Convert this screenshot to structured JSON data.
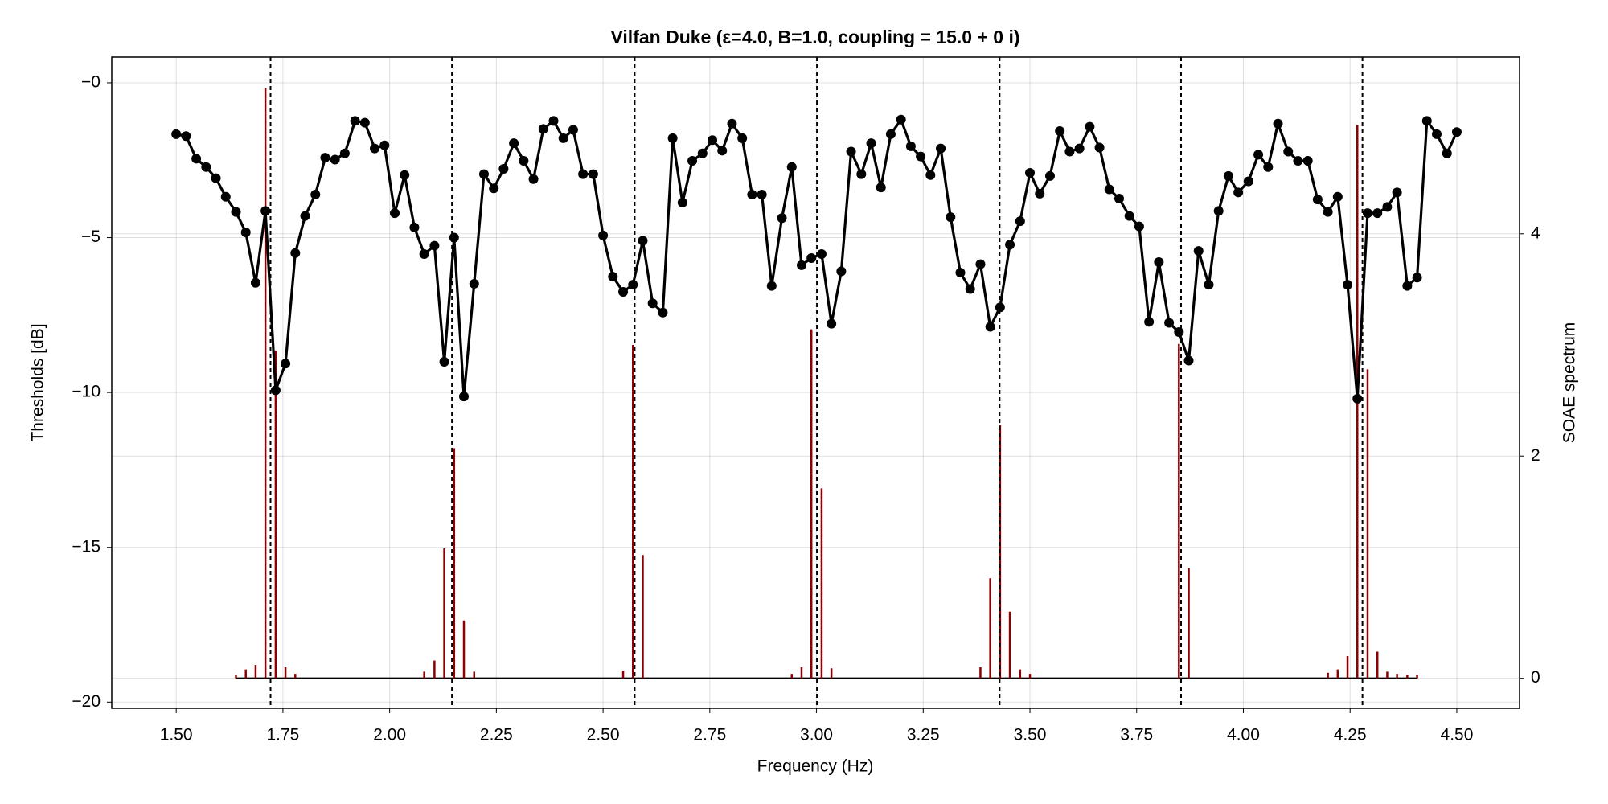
{
  "chart_data": {
    "type": "line",
    "title": "Vilfan Duke (ε=4.0, B=1.0, coupling = 15.0 + 0 i)",
    "x_label": "Frequency (Hz)",
    "y_label": "Thresholds [dB]",
    "y2_label": "SOAE spectrum",
    "grid": true,
    "xlim": [
      1.349,
      4.647
    ],
    "xticks": [
      {
        "value": 1.5,
        "label": "1.50"
      },
      {
        "value": 1.75,
        "label": "1.75"
      },
      {
        "value": 2.0,
        "label": "2.00"
      },
      {
        "value": 2.25,
        "label": "2.25"
      },
      {
        "value": 2.5,
        "label": "2.50"
      },
      {
        "value": 2.75,
        "label": "2.75"
      },
      {
        "value": 3.0,
        "label": "3.00"
      },
      {
        "value": 3.25,
        "label": "3.25"
      },
      {
        "value": 3.5,
        "label": "3.50"
      },
      {
        "value": 3.75,
        "label": "3.75"
      },
      {
        "value": 4.0,
        "label": "4.00"
      },
      {
        "value": 4.25,
        "label": "4.25"
      },
      {
        "value": 4.5,
        "label": "4.50"
      }
    ],
    "ylim": [
      -20.2,
      0.83
    ],
    "yticks": [
      {
        "value": 0,
        "label": "−0"
      },
      {
        "value": -5,
        "label": "−5"
      },
      {
        "value": -10,
        "label": "−10"
      },
      {
        "value": -15,
        "label": "−15"
      },
      {
        "value": -20,
        "label": "−20"
      }
    ],
    "y2lim": [
      -0.27,
      5.59
    ],
    "y2ticks": [
      0,
      2,
      4
    ],
    "vlines": [
      1.721,
      2.146,
      2.574,
      3.001,
      3.429,
      3.854,
      4.279
    ],
    "vline_color": "#000000",
    "series": [
      {
        "type": "line",
        "color": "#000000",
        "x": [
          1.5,
          1.523,
          1.547,
          1.57,
          1.593,
          1.616,
          1.64,
          1.663,
          1.686,
          1.709,
          1.733,
          1.756,
          1.779,
          1.802,
          1.826,
          1.849,
          1.872,
          1.895,
          1.919,
          1.942,
          1.965,
          1.988,
          2.012,
          2.035,
          2.058,
          2.081,
          2.105,
          2.128,
          2.151,
          2.174,
          2.198,
          2.221,
          2.244,
          2.267,
          2.291,
          2.314,
          2.337,
          2.36,
          2.384,
          2.407,
          2.43,
          2.453,
          2.477,
          2.5,
          2.523,
          2.547,
          2.57,
          2.593,
          2.616,
          2.64,
          2.663,
          2.686,
          2.709,
          2.733,
          2.756,
          2.779,
          2.802,
          2.826,
          2.849,
          2.872,
          2.895,
          2.919,
          2.942,
          2.965,
          2.988,
          3.012,
          3.035,
          3.058,
          3.081,
          3.105,
          3.128,
          3.151,
          3.174,
          3.198,
          3.221,
          3.244,
          3.267,
          3.291,
          3.314,
          3.337,
          3.36,
          3.384,
          3.407,
          3.43,
          3.453,
          3.477,
          3.5,
          3.523,
          3.547,
          3.57,
          3.593,
          3.616,
          3.64,
          3.663,
          3.686,
          3.709,
          3.733,
          3.756,
          3.779,
          3.802,
          3.826,
          3.849,
          3.872,
          3.895,
          3.919,
          3.942,
          3.965,
          3.988,
          4.012,
          4.035,
          4.058,
          4.081,
          4.105,
          4.128,
          4.151,
          4.174,
          4.198,
          4.221,
          4.244,
          4.267,
          4.291,
          4.314,
          4.337,
          4.36,
          4.384,
          4.407,
          4.43,
          4.453,
          4.477,
          4.5
        ],
        "values": [
          -1.66,
          -1.72,
          -2.45,
          -2.72,
          -3.08,
          -3.68,
          -4.17,
          -4.83,
          -6.46,
          -4.14,
          -9.93,
          -9.07,
          -5.5,
          -4.3,
          -3.61,
          -2.42,
          -2.48,
          -2.28,
          -1.23,
          -1.29,
          -2.12,
          -2.02,
          -4.21,
          -2.98,
          -4.67,
          -5.53,
          -5.26,
          -9.01,
          -5.0,
          -10.13,
          -6.49,
          -2.95,
          -3.41,
          -2.78,
          -1.95,
          -2.52,
          -3.11,
          -1.49,
          -1.23,
          -1.79,
          -1.52,
          -2.95,
          -2.95,
          -4.93,
          -6.26,
          -6.75,
          -6.52,
          -5.1,
          -7.12,
          -7.42,
          -1.79,
          -3.87,
          -2.52,
          -2.28,
          -1.85,
          -2.19,
          -1.32,
          -1.79,
          -3.61,
          -3.61,
          -6.56,
          -4.37,
          -2.72,
          -5.89,
          -5.66,
          -5.53,
          -7.78,
          -6.09,
          -2.22,
          -2.95,
          -1.95,
          -3.38,
          -1.66,
          -1.19,
          -2.05,
          -2.38,
          -2.98,
          -2.12,
          -4.34,
          -6.13,
          -6.66,
          -5.86,
          -7.88,
          -7.25,
          -5.23,
          -4.47,
          -2.91,
          -3.58,
          -3.01,
          -1.56,
          -2.22,
          -2.12,
          -1.42,
          -2.09,
          -3.44,
          -3.74,
          -4.3,
          -4.64,
          -7.72,
          -5.79,
          -7.75,
          -8.05,
          -8.97,
          -5.43,
          -6.52,
          -4.14,
          -3.01,
          -3.54,
          -3.18,
          -2.32,
          -2.72,
          -1.32,
          -2.22,
          -2.52,
          -2.52,
          -3.77,
          -4.17,
          -3.68,
          -6.52,
          -10.2,
          -4.21,
          -4.21,
          -4.01,
          -3.54,
          -6.56,
          -6.29,
          -1.23,
          -1.66,
          -2.28,
          -1.59
        ]
      },
      {
        "type": "stem",
        "axis": "y2",
        "color": "#8b0000",
        "x": [
          1.64,
          1.663,
          1.686,
          1.709,
          1.733,
          1.756,
          1.779,
          2.081,
          2.105,
          2.128,
          2.151,
          2.174,
          2.198,
          2.547,
          2.57,
          2.593,
          2.942,
          2.965,
          2.988,
          3.012,
          3.035,
          3.384,
          3.407,
          3.43,
          3.453,
          3.477,
          3.5,
          3.849,
          3.872,
          4.198,
          4.221,
          4.244,
          4.267,
          4.291,
          4.314,
          4.337,
          4.36,
          4.384,
          4.407
        ],
        "values": [
          0.03,
          0.08,
          0.12,
          5.31,
          2.95,
          0.1,
          0.04,
          0.06,
          0.16,
          1.17,
          2.07,
          0.52,
          0.06,
          0.07,
          3.0,
          1.11,
          0.04,
          0.1,
          3.14,
          1.71,
          0.09,
          0.1,
          0.9,
          2.28,
          0.6,
          0.08,
          0.04,
          3.01,
          0.99,
          0.05,
          0.08,
          0.2,
          4.98,
          2.78,
          0.24,
          0.06,
          0.04,
          0.03,
          0.03
        ]
      }
    ]
  }
}
